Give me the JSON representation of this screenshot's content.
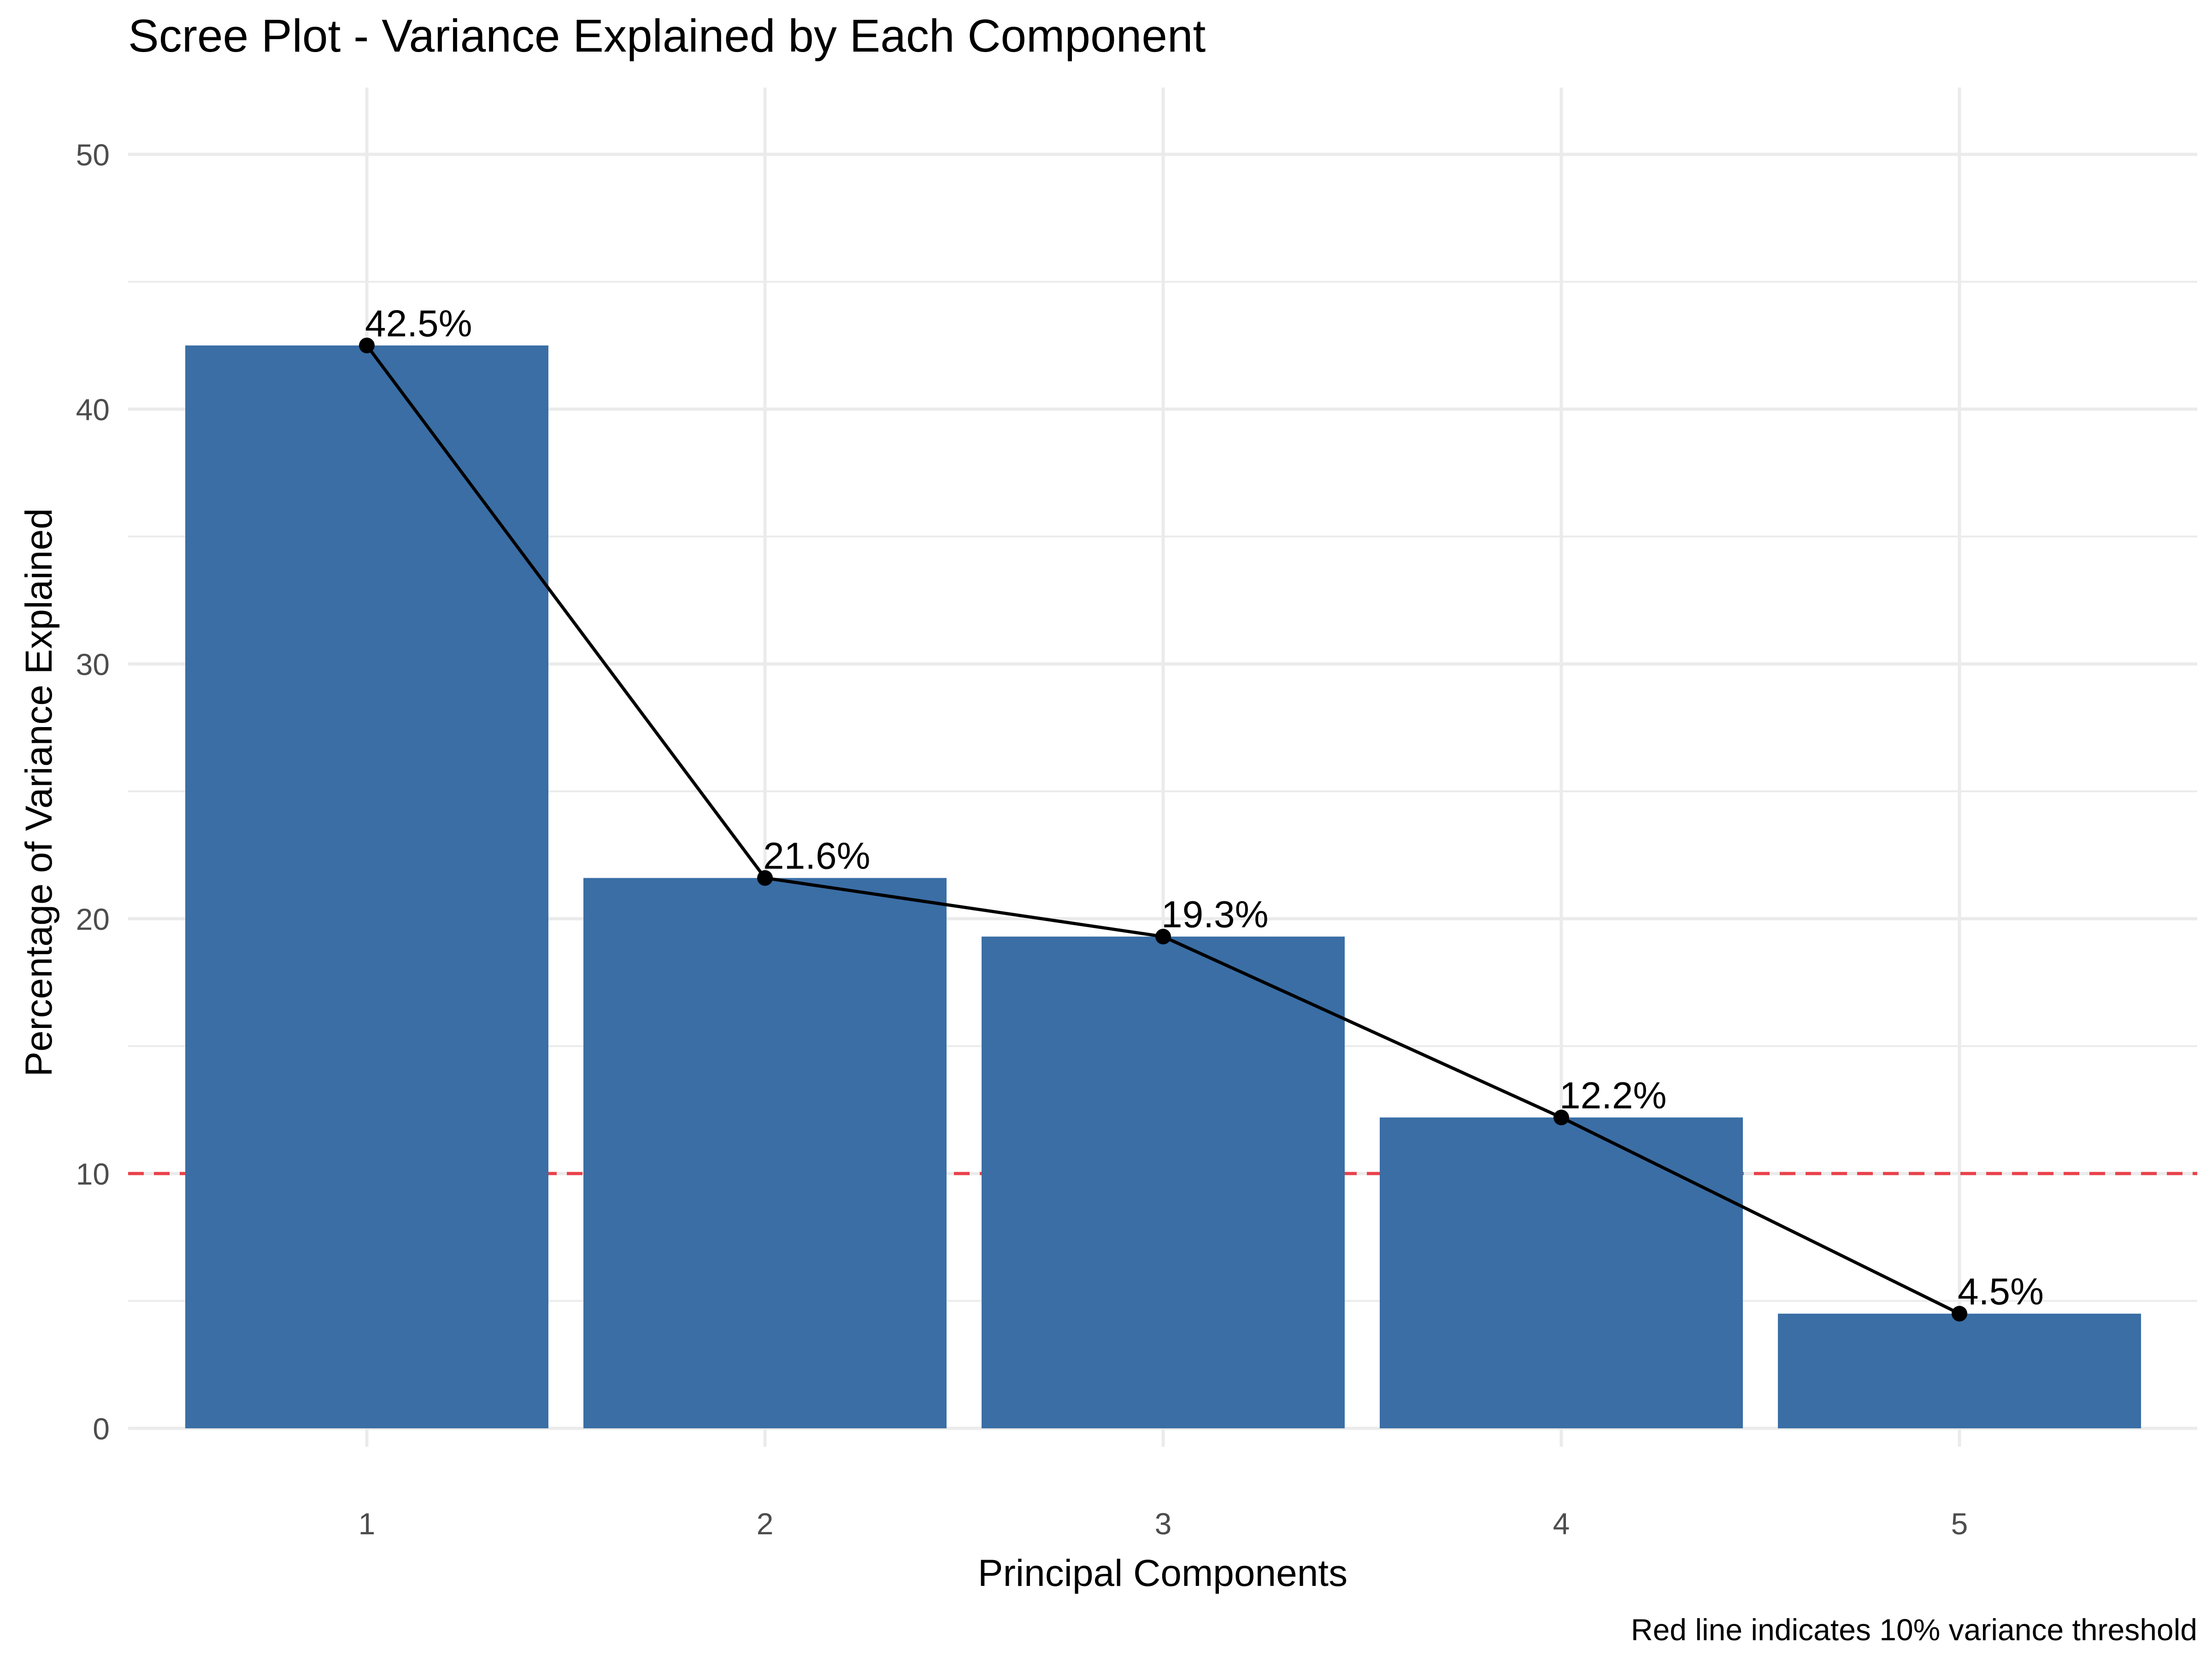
{
  "chart_data": {
    "type": "bar",
    "title": "Scree Plot - Variance Explained by Each Component",
    "xlabel": "Principal Components",
    "ylabel": "Percentage of Variance Explained",
    "caption": "Red line indicates 10% variance threshold",
    "categories": [
      "1",
      "2",
      "3",
      "4",
      "5"
    ],
    "values": [
      42.5,
      21.6,
      19.3,
      12.2,
      4.5
    ],
    "data_labels": [
      "42.5%",
      "21.6%",
      "19.3%",
      "12.2%",
      "4.5%"
    ],
    "line_overlay": {
      "values": [
        42.5,
        21.6,
        19.3,
        12.2,
        4.5
      ],
      "color": "#000000",
      "markers": true
    },
    "threshold": {
      "value": 10,
      "color": "#e8414a",
      "style": "dashed"
    },
    "ylim": [
      0,
      52
    ],
    "yticks": [
      0,
      10,
      20,
      30,
      40,
      50
    ],
    "grid": true,
    "bar_color": "#3a6ea5"
  }
}
